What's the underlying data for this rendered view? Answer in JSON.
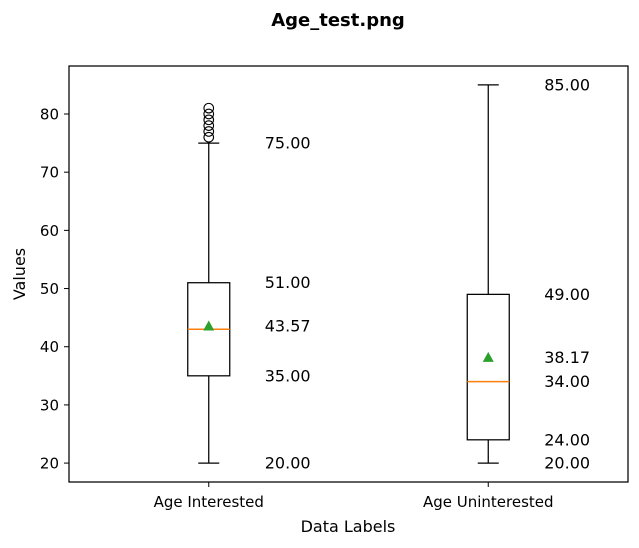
{
  "chart_data": {
    "type": "box",
    "title": "Age_test.png",
    "xlabel": "Data Labels",
    "ylabel": "Values",
    "ylim": [
      16.75,
      88.25
    ],
    "yticks": [
      20,
      30,
      40,
      50,
      60,
      70,
      80
    ],
    "categories": [
      "Age Interested",
      "Age Uninterested"
    ],
    "series": [
      {
        "category": "Age Interested",
        "whisker_low": 20,
        "q1": 35,
        "median": 43,
        "q3": 51,
        "whisker_high": 75,
        "mean": 43.57,
        "outliers": [
          76,
          77,
          78,
          79,
          80,
          81
        ],
        "labels": [
          "75.00",
          "51.00",
          "43.57",
          "35.00",
          "20.00"
        ]
      },
      {
        "category": "Age Uninterested",
        "whisker_low": 20,
        "q1": 24,
        "median": 34,
        "q3": 49,
        "whisker_high": 85,
        "mean": 38.17,
        "outliers": [],
        "labels": [
          "85.00",
          "49.00",
          "38.17",
          "34.00",
          "24.00",
          "20.00"
        ]
      }
    ],
    "colors": {
      "box": "#000000",
      "median": "#ff7f0e",
      "mean": "#2ca02c"
    },
    "grid": false,
    "legend": "none"
  }
}
